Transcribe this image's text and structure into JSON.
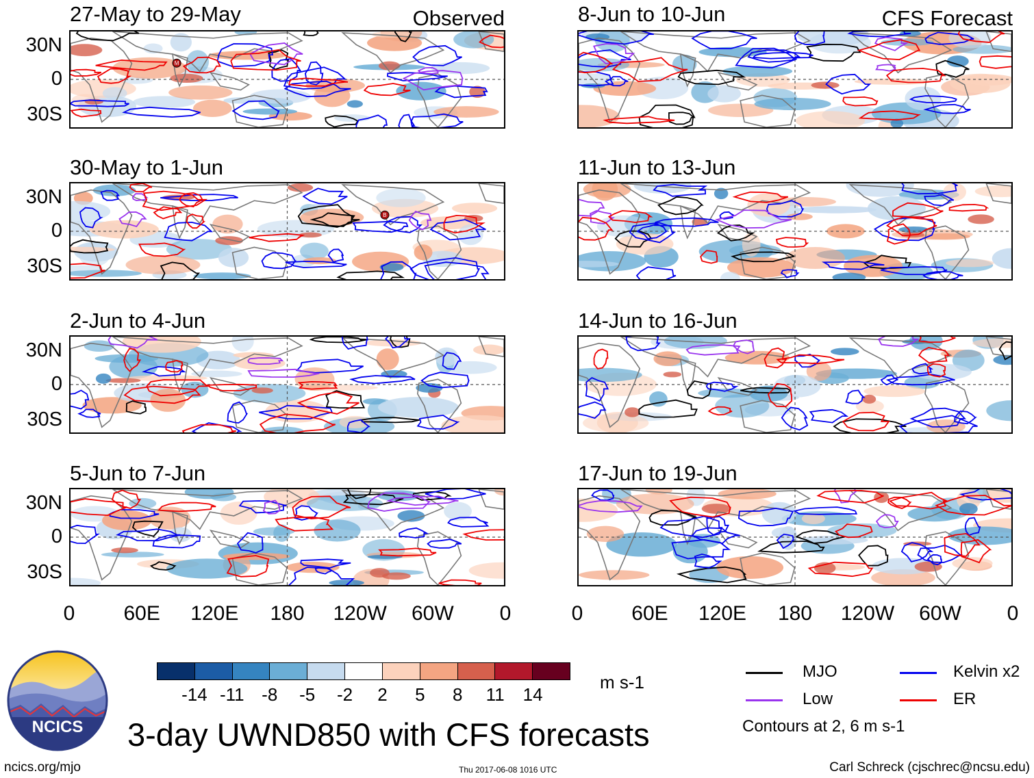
{
  "title": "3-day UWND850 with CFS forecasts",
  "observed_label": "Observed",
  "forecast_label": "CFS Forecast",
  "panels_left": [
    {
      "period": "27-May to 29-May",
      "markers": [
        "M"
      ]
    },
    {
      "period": "30-May to 1-Jun",
      "markers": [
        "B"
      ]
    },
    {
      "period": "2-Jun to 4-Jun",
      "markers": []
    },
    {
      "period": "5-Jun to 7-Jun",
      "markers": []
    }
  ],
  "panels_right": [
    {
      "period": "8-Jun to 10-Jun"
    },
    {
      "period": "11-Jun to 13-Jun"
    },
    {
      "period": "14-Jun to 16-Jun"
    },
    {
      "period": "17-Jun to 19-Jun"
    }
  ],
  "y_ticks": [
    "30N",
    "0",
    "30S"
  ],
  "x_ticks": [
    "0",
    "60E",
    "120E",
    "180",
    "120W",
    "60W",
    "0"
  ],
  "colorbar": {
    "labels": [
      "-14",
      "-11",
      "-8",
      "-5",
      "-2",
      "2",
      "5",
      "8",
      "11",
      "14"
    ],
    "units": "m s-1",
    "colors": [
      "#08306b",
      "#1c5ca6",
      "#3584c0",
      "#6baed6",
      "#c6dbef",
      "#ffffff",
      "#fcd2bc",
      "#f4a582",
      "#d6604d",
      "#b2182b",
      "#67001f"
    ]
  },
  "legend": {
    "items": [
      {
        "label": "MJO",
        "color": "#000000"
      },
      {
        "label": "Kelvin x2",
        "color": "#0000ee"
      },
      {
        "label": "Low",
        "color": "#9933ee"
      },
      {
        "label": "ER",
        "color": "#ee0000"
      }
    ],
    "note": "Contours at 2, 6 m s-1"
  },
  "logo_text": "NCICS",
  "footer": {
    "left": "ncics.org/mjo",
    "center": "Thu 2017-06-08 1016 UTC",
    "right": "Carl Schreck (cjschrec@ncsu.edu)"
  }
}
